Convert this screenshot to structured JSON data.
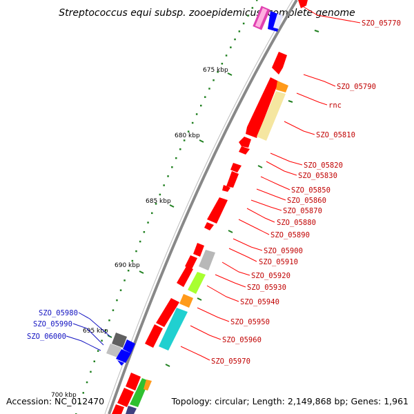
{
  "title": "Streptococcus equi subsp. zooepidemicus, complete genome",
  "accession": "Accession: NC_012470",
  "summary": "Topology: circular; Length: 2,149,868 bp; Genes: 1,961",
  "kbp_labels": [
    "675 kbp",
    "680 kbp",
    "685 kbp",
    "690 kbp",
    "695 kbp",
    "700 kbp"
  ],
  "gene_labels_right": [
    "SZO_05770",
    "SZO_05790",
    "rnc",
    "SZO_05810",
    "SZO_05820",
    "SZO_05830",
    "SZO_05850",
    "SZO_05860",
    "SZO_05870",
    "SZO_05880",
    "SZO_05890",
    "SZO_05900",
    "SZO_05910",
    "SZO_05920",
    "SZO_05930",
    "SZO_05940",
    "SZO_05950",
    "SZO_05960",
    "SZO_05970"
  ],
  "gene_labels_left": [
    "SZO_05980",
    "SZO_05990",
    "SZO_06000"
  ],
  "colors": {
    "forward_gene": "#ff0000",
    "highlight_gene": "#f5e6a0",
    "orange_gene": "#ff9a1a",
    "cyan_gene": "#20d0d0",
    "lime_gene": "#a8ff30",
    "green_gene": "#30c030",
    "gray_gene": "#b8b8b8",
    "blue_gene": "#0000ff",
    "magenta_gene": "#e040b0",
    "backbone": "#808080",
    "tick": "#208020",
    "label_red": "#c00000",
    "label_blue": "#1010c0"
  }
}
